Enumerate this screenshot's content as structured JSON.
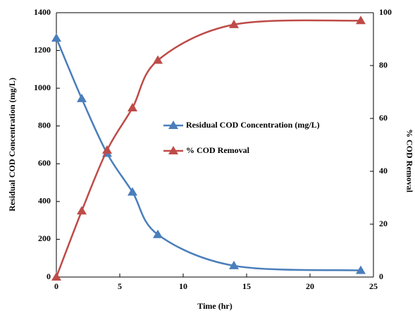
{
  "chart_data": {
    "type": "line",
    "x_label": "Time (hr)",
    "y_label": "Residual COD  Concentration (mg/L)",
    "y2_label": "% COD Removal",
    "x": [
      0,
      2,
      4,
      6,
      8,
      14,
      24
    ],
    "series": [
      {
        "name": "Residual COD Concentration (mg/L)",
        "color": "#4a7ebb",
        "values": [
          1265,
          945,
          655,
          450,
          225,
          60,
          35
        ]
      },
      {
        "name": "% COD Removal",
        "color": "#be4b48",
        "axis": "y2",
        "values": [
          0,
          25,
          48,
          64,
          82,
          95.5,
          97
        ]
      }
    ],
    "xlim": [
      0,
      25
    ],
    "xticks": [
      0,
      5,
      10,
      15,
      20,
      25
    ],
    "ylim": [
      0,
      1400
    ],
    "yticks": [
      0,
      200,
      400,
      600,
      800,
      1000,
      1200,
      1400
    ],
    "y2lim": [
      0,
      100
    ],
    "y2ticks": [
      0,
      20,
      40,
      60,
      80,
      100
    ],
    "legend": "center",
    "smooth": true
  }
}
